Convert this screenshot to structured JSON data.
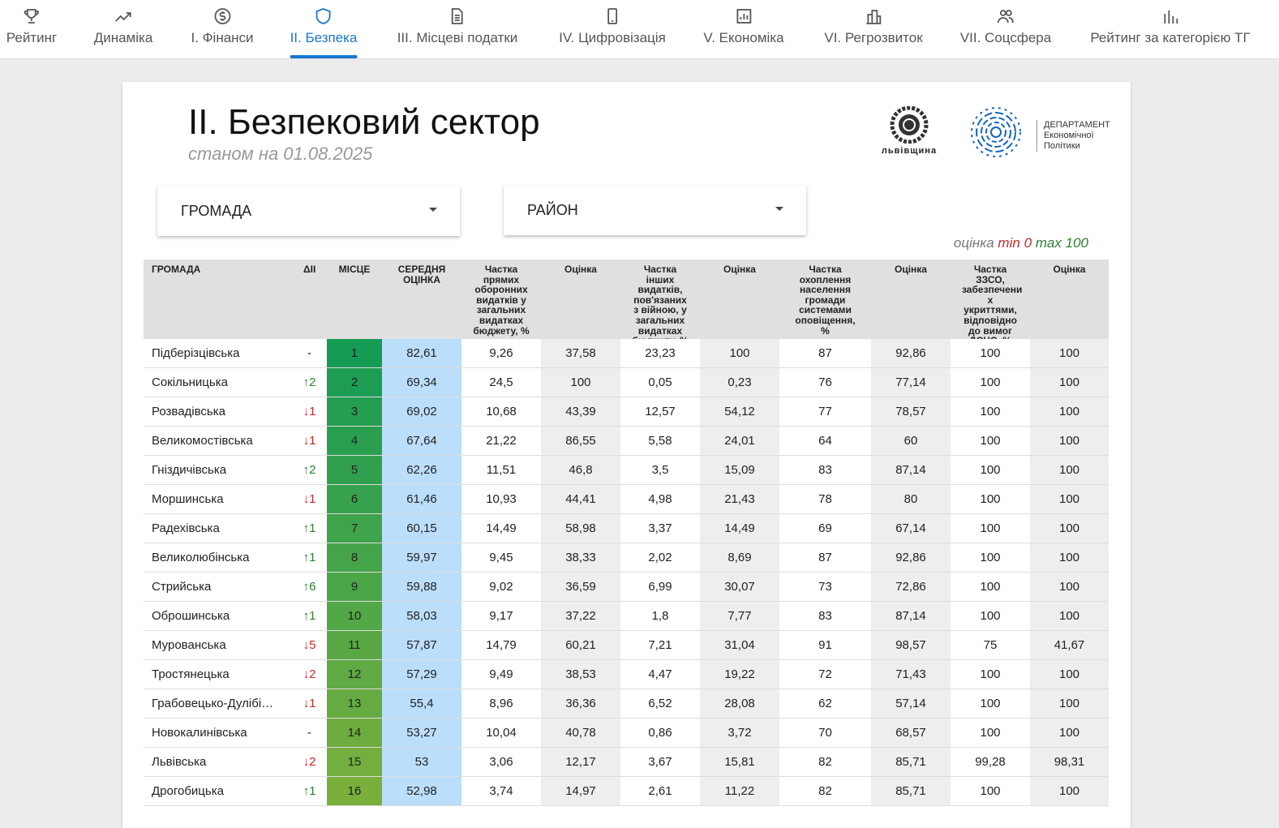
{
  "nav": {
    "tabs": [
      "Рейтинг",
      "Динаміка",
      "І. Фінанси",
      "ІІ. Безпека",
      "ІІІ. Місцеві податки",
      "IV. Цифровізація",
      "V. Економіка",
      "VI. Регрозвиток",
      "VII. Соцсфера",
      "Рейтинг за категорією ТГ"
    ]
  },
  "report": {
    "title": "ІІ. Безпековий сектор",
    "date_label": "станом на 01.08.2025",
    "logo_region": "львівщина",
    "logo_department": [
      "ДЕПАРТАМЕНТ",
      "Економічної",
      "Політики"
    ]
  },
  "filters": [
    "ГРОМАДА",
    "РАЙОН"
  ],
  "legend": {
    "label": "оцінка",
    "min_label": "min",
    "min_value": "0",
    "max_label": "max",
    "max_value": "100"
  },
  "table": {
    "headers": [
      "ГРОМАДА",
      "ΔІІ",
      "МІСЦЕ",
      "СЕРЕДНЯ ОЦІНКА",
      "Частка прямих оборонних видатків у загальних видатках бюджету, %",
      "Оцінка",
      "Частка інших видатків, пов'язаних з війною, у загальних видатках бюджету, %",
      "Оцінка",
      "Частка охоплення населення громади системами оповіщення, %",
      "Оцінка",
      "Частка ЗЗСО, забезпечени х укриттями, відповідно до вимог ДСНС, %",
      "Оцінка"
    ],
    "rows": [
      [
        "Підберізцівська",
        "-",
        "1",
        "82,61",
        "9,26",
        "37,58",
        "23,23",
        "100",
        "87",
        "92,86",
        "100",
        "100"
      ],
      [
        "Сокільницька",
        "↑2",
        "2",
        "69,34",
        "24,5",
        "100",
        "0,05",
        "0,23",
        "76",
        "77,14",
        "100",
        "100"
      ],
      [
        "Розвадівська",
        "↓1",
        "3",
        "69,02",
        "10,68",
        "43,39",
        "12,57",
        "54,12",
        "77",
        "78,57",
        "100",
        "100"
      ],
      [
        "Великомостівська",
        "↓1",
        "4",
        "67,64",
        "21,22",
        "86,55",
        "5,58",
        "24,01",
        "64",
        "60",
        "100",
        "100"
      ],
      [
        "Гніздичівська",
        "↑2",
        "5",
        "62,26",
        "11,51",
        "46,8",
        "3,5",
        "15,09",
        "83",
        "87,14",
        "100",
        "100"
      ],
      [
        "Моршинська",
        "↓1",
        "6",
        "61,46",
        "10,93",
        "44,41",
        "4,98",
        "21,43",
        "78",
        "80",
        "100",
        "100"
      ],
      [
        "Радехівська",
        "↑1",
        "7",
        "60,15",
        "14,49",
        "58,98",
        "3,37",
        "14,49",
        "69",
        "67,14",
        "100",
        "100"
      ],
      [
        "Великолюбінська",
        "↑1",
        "8",
        "59,97",
        "9,45",
        "38,33",
        "2,02",
        "8,69",
        "87",
        "92,86",
        "100",
        "100"
      ],
      [
        "Стрийська",
        "↑6",
        "9",
        "59,88",
        "9,02",
        "36,59",
        "6,99",
        "30,07",
        "73",
        "72,86",
        "100",
        "100"
      ],
      [
        "Оброшинська",
        "↑1",
        "10",
        "58,03",
        "9,17",
        "37,22",
        "1,8",
        "7,77",
        "83",
        "87,14",
        "100",
        "100"
      ],
      [
        "Мурованська",
        "↓5",
        "11",
        "57,87",
        "14,79",
        "60,21",
        "7,21",
        "31,04",
        "91",
        "98,57",
        "75",
        "41,67"
      ],
      [
        "Тростянецька",
        "↓2",
        "12",
        "57,29",
        "9,49",
        "38,53",
        "4,47",
        "19,22",
        "72",
        "71,43",
        "100",
        "100"
      ],
      [
        "Грабовецько-Дулібі…",
        "↓1",
        "13",
        "55,4",
        "8,96",
        "36,36",
        "6,52",
        "28,08",
        "62",
        "57,14",
        "100",
        "100"
      ],
      [
        "Новокалинівська",
        "-",
        "14",
        "53,27",
        "10,04",
        "40,78",
        "0,86",
        "3,72",
        "70",
        "68,57",
        "100",
        "100"
      ],
      [
        "Львівська",
        "↓2",
        "15",
        "53",
        "3,06",
        "12,17",
        "3,67",
        "15,81",
        "82",
        "85,71",
        "99,28",
        "98,31"
      ],
      [
        "Дрогобицька",
        "↑1",
        "16",
        "52,98",
        "3,74",
        "14,97",
        "2,61",
        "11,22",
        "82",
        "85,71",
        "100",
        "100"
      ]
    ]
  }
}
